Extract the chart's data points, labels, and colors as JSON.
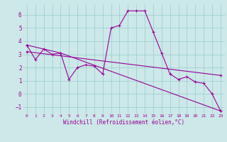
{
  "xlabel": "Windchill (Refroidissement éolien,°C)",
  "bg_color": "#cce8e8",
  "line_color": "#990099",
  "xlim": [
    -0.5,
    23.5
  ],
  "ylim": [
    -1.5,
    6.8
  ],
  "yticks": [
    -1,
    0,
    1,
    2,
    3,
    4,
    5,
    6
  ],
  "xticks": [
    0,
    1,
    2,
    3,
    4,
    5,
    6,
    7,
    8,
    9,
    10,
    11,
    12,
    13,
    14,
    15,
    16,
    17,
    18,
    19,
    20,
    21,
    22,
    23
  ],
  "series1_x": [
    0,
    1,
    2,
    3,
    4,
    5,
    6,
    7,
    8,
    9,
    10,
    11,
    12,
    13,
    14,
    15,
    16,
    17,
    18,
    19,
    20,
    21,
    22,
    23
  ],
  "series1_y": [
    3.7,
    2.6,
    3.4,
    3.0,
    3.1,
    1.1,
    2.0,
    2.2,
    2.1,
    1.5,
    5.0,
    5.2,
    6.3,
    6.3,
    6.3,
    4.7,
    3.1,
    1.5,
    1.1,
    1.3,
    0.9,
    0.8,
    0.0,
    -1.3
  ],
  "series2_x": [
    0,
    4,
    23
  ],
  "series2_y": [
    3.7,
    3.1,
    -1.3
  ],
  "series3_x": [
    0,
    23
  ],
  "series3_y": [
    3.2,
    1.4
  ]
}
